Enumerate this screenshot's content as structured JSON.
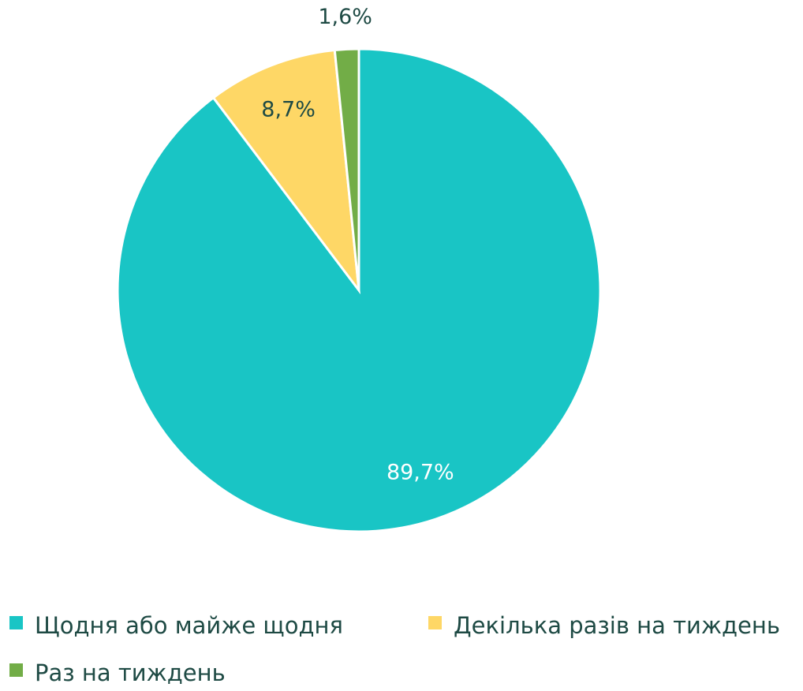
{
  "chart_data": {
    "type": "pie",
    "categories": [
      "Щодня або майже щодня",
      "Декілька разів на тиждень",
      "Раз на тиждень"
    ],
    "values": [
      89.7,
      8.7,
      1.6
    ],
    "value_labels": [
      "89,7%",
      "8,7%",
      "1,6%"
    ],
    "colors": [
      "#19c5c5",
      "#fed766",
      "#72ad47"
    ],
    "legend": "bottom"
  }
}
